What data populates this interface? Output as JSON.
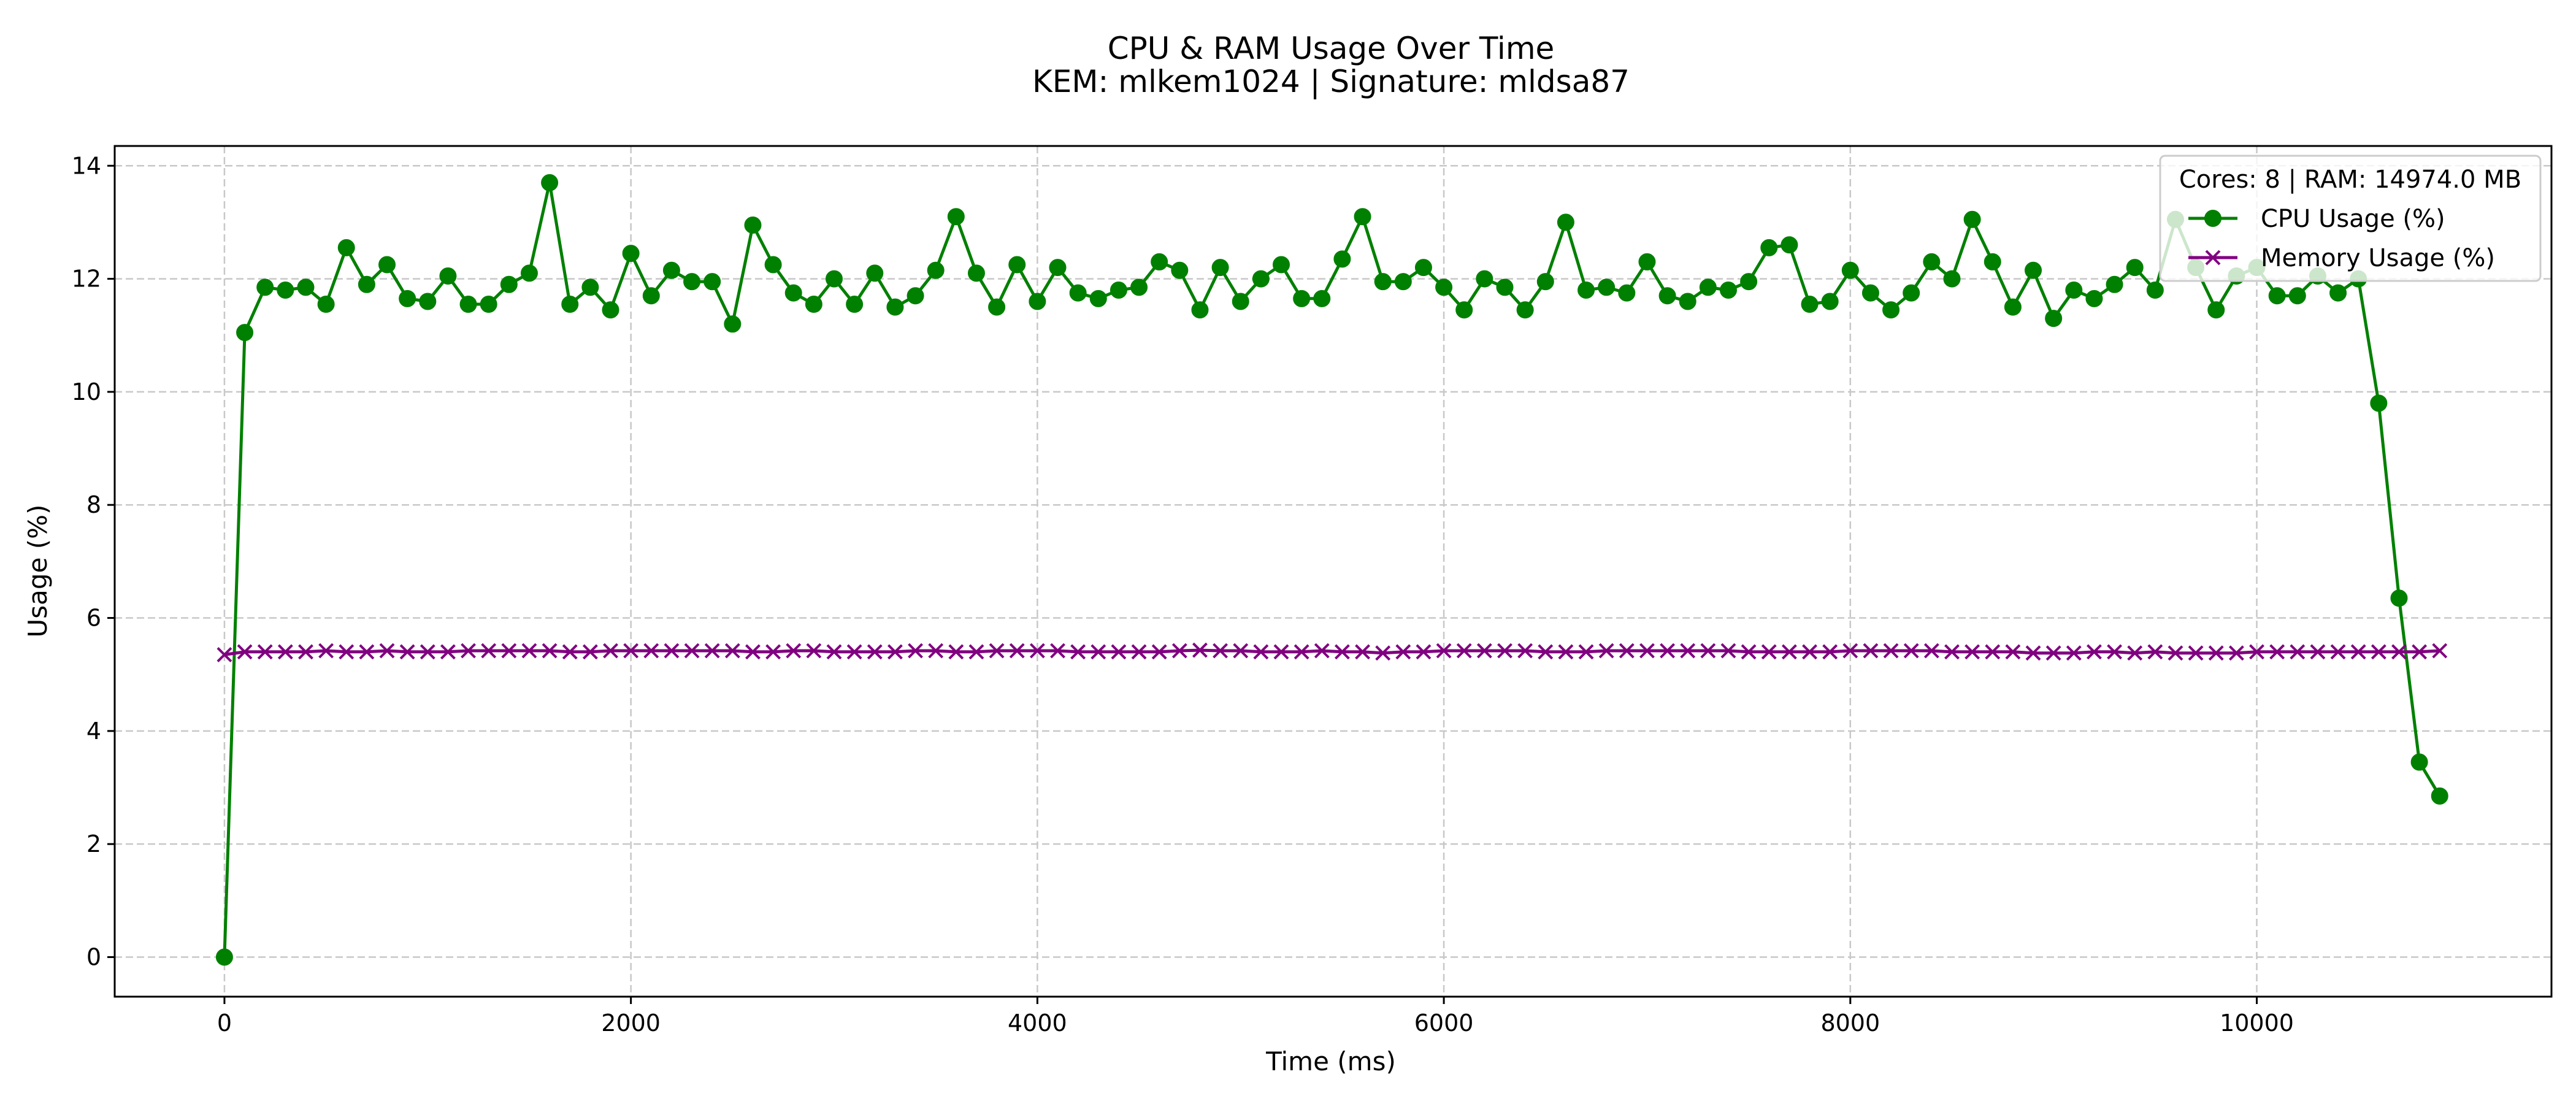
{
  "chart_data": {
    "type": "line",
    "title": "CPU & RAM Usage Over Time",
    "subtitle": "KEM: mlkem1024 | Signature: mldsa87",
    "xlabel": "Time (ms)",
    "ylabel": "Usage (%)",
    "xlim": [
      -540,
      11450
    ],
    "ylim": [
      -0.7,
      14.35
    ],
    "xticks": [
      0,
      2000,
      4000,
      6000,
      8000,
      10000
    ],
    "yticks": [
      0,
      2,
      4,
      6,
      8,
      10,
      12,
      14
    ],
    "grid": true,
    "legend": {
      "placement": "top-right",
      "title": "Cores: 8 | RAM: 14974.0 MB"
    },
    "x": [
      0,
      100,
      200,
      300,
      400,
      500,
      600,
      700,
      800,
      900,
      1000,
      1100,
      1200,
      1300,
      1400,
      1500,
      1600,
      1700,
      1800,
      1900,
      2000,
      2100,
      2200,
      2300,
      2400,
      2500,
      2600,
      2700,
      2800,
      2900,
      3000,
      3100,
      3200,
      3300,
      3400,
      3500,
      3600,
      3700,
      3800,
      3900,
      4000,
      4100,
      4200,
      4300,
      4400,
      4500,
      4600,
      4700,
      4800,
      4900,
      5000,
      5100,
      5200,
      5300,
      5400,
      5500,
      5600,
      5700,
      5800,
      5900,
      6000,
      6100,
      6200,
      6300,
      6400,
      6500,
      6600,
      6700,
      6800,
      6900,
      7000,
      7100,
      7200,
      7300,
      7400,
      7500,
      7600,
      7700,
      7800,
      7900,
      8000,
      8100,
      8200,
      8300,
      8400,
      8500,
      8600,
      8700,
      8800,
      8900,
      9000,
      9100,
      9200,
      9300,
      9400,
      9500,
      9600,
      9700,
      9800,
      9900,
      10000,
      10100,
      10200,
      10300,
      10400,
      10500,
      10600,
      10700,
      10800,
      10900
    ],
    "series": [
      {
        "name": "CPU Usage (%)",
        "color": "#008000",
        "marker": "circle",
        "values": [
          0.0,
          11.05,
          11.85,
          11.8,
          11.85,
          11.55,
          12.55,
          11.9,
          12.25,
          11.65,
          11.6,
          12.05,
          11.55,
          11.55,
          11.9,
          12.1,
          13.7,
          11.55,
          11.85,
          11.45,
          12.45,
          11.7,
          12.15,
          11.95,
          11.95,
          11.2,
          12.95,
          12.25,
          11.75,
          11.55,
          12.0,
          11.55,
          12.1,
          11.5,
          11.7,
          12.15,
          13.1,
          12.1,
          11.5,
          12.25,
          11.6,
          12.2,
          11.75,
          11.65,
          11.8,
          11.85,
          12.3,
          12.15,
          11.45,
          12.2,
          11.6,
          12.0,
          12.25,
          11.65,
          11.65,
          12.35,
          13.1,
          11.95,
          11.95,
          12.2,
          11.85,
          11.45,
          12.0,
          11.85,
          11.45,
          11.95,
          13.0,
          11.8,
          11.85,
          11.75,
          12.3,
          11.7,
          11.6,
          11.85,
          11.8,
          11.95,
          12.55,
          12.6,
          11.55,
          11.6,
          12.15,
          11.75,
          11.45,
          11.75,
          12.3,
          12.0,
          13.05,
          12.3,
          11.5,
          12.15,
          11.3,
          11.8,
          11.65,
          11.9,
          12.2,
          11.8,
          13.05,
          12.2,
          11.45,
          12.05,
          12.2,
          11.7,
          11.7,
          12.05,
          11.75,
          12.0,
          9.8,
          6.35,
          3.45,
          2.85
        ]
      },
      {
        "name": "Memory Usage (%)",
        "color": "#800080",
        "marker": "x",
        "values": [
          5.35,
          5.4,
          5.4,
          5.4,
          5.4,
          5.42,
          5.4,
          5.4,
          5.42,
          5.4,
          5.4,
          5.4,
          5.42,
          5.42,
          5.42,
          5.42,
          5.42,
          5.4,
          5.4,
          5.42,
          5.42,
          5.42,
          5.42,
          5.42,
          5.42,
          5.42,
          5.4,
          5.4,
          5.42,
          5.42,
          5.4,
          5.4,
          5.4,
          5.4,
          5.42,
          5.42,
          5.4,
          5.4,
          5.42,
          5.42,
          5.42,
          5.42,
          5.4,
          5.4,
          5.4,
          5.4,
          5.4,
          5.42,
          5.43,
          5.42,
          5.42,
          5.4,
          5.4,
          5.4,
          5.42,
          5.4,
          5.4,
          5.38,
          5.4,
          5.4,
          5.42,
          5.42,
          5.42,
          5.42,
          5.42,
          5.4,
          5.4,
          5.4,
          5.42,
          5.42,
          5.42,
          5.42,
          5.42,
          5.42,
          5.42,
          5.4,
          5.4,
          5.4,
          5.4,
          5.4,
          5.42,
          5.42,
          5.42,
          5.42,
          5.42,
          5.4,
          5.4,
          5.4,
          5.4,
          5.38,
          5.38,
          5.38,
          5.4,
          5.4,
          5.38,
          5.4,
          5.38,
          5.38,
          5.38,
          5.38,
          5.4,
          5.4,
          5.4,
          5.4,
          5.4,
          5.4,
          5.4,
          5.4,
          5.4,
          5.42
        ]
      }
    ]
  }
}
